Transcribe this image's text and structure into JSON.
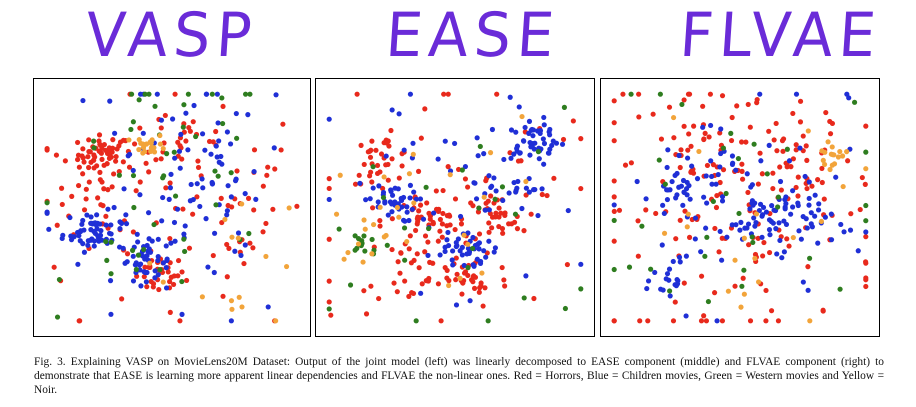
{
  "colors": {
    "title": "#6a2bd8",
    "red": "#e8291c",
    "blue": "#1f2fd6",
    "green": "#2e7d1f",
    "yellow": "#f2a43a"
  },
  "caption": "Fig. 3.  Explaining VASP on MovieLens20M Dataset: Output of the joint model (left) was linearly decomposed to EASE component (middle) and FLVAE component (right) to demonstrate that EASE is learning more apparent linear dependencies and FLVAE the non-linear ones. Red = Horrors, Blue = Children movies, Green = Western movies and Yellow = Noir.",
  "chart_data": [
    {
      "type": "scatter",
      "title": "VASP",
      "xlim": [
        0,
        1
      ],
      "ylim": [
        0,
        1
      ],
      "series": [
        {
          "color": "#e8291c",
          "clusters": [
            [
              0.24,
              0.72,
              0.05,
              0.04,
              55
            ],
            [
              0.45,
              0.22,
              0.05,
              0.04,
              30
            ],
            [
              0.15,
              0.5,
              0.08,
              0.1,
              20
            ],
            [
              0.7,
              0.55,
              0.15,
              0.2,
              40
            ],
            [
              0.55,
              0.8,
              0.1,
              0.08,
              25
            ],
            [
              0.35,
              0.45,
              0.2,
              0.25,
              40
            ]
          ]
        },
        {
          "color": "#1f2fd6",
          "clusters": [
            [
              0.2,
              0.4,
              0.06,
              0.04,
              60
            ],
            [
              0.4,
              0.28,
              0.05,
              0.04,
              35
            ],
            [
              0.6,
              0.6,
              0.12,
              0.2,
              50
            ],
            [
              0.5,
              0.5,
              0.25,
              0.3,
              50
            ]
          ]
        },
        {
          "color": "#2e7d1f",
          "clusters": [
            [
              0.5,
              0.7,
              0.2,
              0.2,
              35
            ],
            [
              0.4,
              0.3,
              0.15,
              0.1,
              15
            ]
          ]
        },
        {
          "color": "#f2a43a",
          "clusters": [
            [
              0.42,
              0.76,
              0.03,
              0.02,
              20
            ],
            [
              0.75,
              0.3,
              0.15,
              0.15,
              15
            ]
          ]
        }
      ]
    },
    {
      "type": "scatter",
      "title": "EASE",
      "xlim": [
        0,
        1
      ],
      "ylim": [
        0,
        1
      ],
      "series": [
        {
          "color": "#e8291c",
          "clusters": [
            [
              0.22,
              0.7,
              0.06,
              0.05,
              35
            ],
            [
              0.4,
              0.45,
              0.06,
              0.04,
              40
            ],
            [
              0.65,
              0.45,
              0.06,
              0.05,
              35
            ],
            [
              0.55,
              0.2,
              0.08,
              0.06,
              30
            ],
            [
              0.35,
              0.25,
              0.1,
              0.08,
              25
            ],
            [
              0.5,
              0.55,
              0.28,
              0.3,
              60
            ]
          ]
        },
        {
          "color": "#1f2fd6",
          "clusters": [
            [
              0.8,
              0.78,
              0.06,
              0.04,
              40
            ],
            [
              0.25,
              0.52,
              0.05,
              0.04,
              35
            ],
            [
              0.54,
              0.32,
              0.04,
              0.04,
              35
            ],
            [
              0.7,
              0.6,
              0.1,
              0.12,
              35
            ],
            [
              0.5,
              0.5,
              0.25,
              0.25,
              40
            ]
          ]
        },
        {
          "color": "#2e7d1f",
          "clusters": [
            [
              0.15,
              0.35,
              0.03,
              0.03,
              15
            ],
            [
              0.5,
              0.4,
              0.25,
              0.25,
              25
            ]
          ]
        },
        {
          "color": "#f2a43a",
          "clusters": [
            [
              0.2,
              0.4,
              0.08,
              0.06,
              15
            ],
            [
              0.45,
              0.55,
              0.2,
              0.2,
              15
            ]
          ]
        }
      ]
    },
    {
      "type": "scatter",
      "title": "FLVAE",
      "xlim": [
        0,
        1
      ],
      "ylim": [
        0,
        1
      ],
      "series": [
        {
          "color": "#e8291c",
          "clusters": [
            [
              0.5,
              0.5,
              0.28,
              0.28,
              140
            ],
            [
              0.75,
              0.7,
              0.08,
              0.1,
              30
            ],
            [
              0.35,
              0.7,
              0.12,
              0.1,
              25
            ]
          ]
        },
        {
          "color": "#1f2fd6",
          "clusters": [
            [
              0.65,
              0.45,
              0.1,
              0.06,
              60
            ],
            [
              0.3,
              0.58,
              0.08,
              0.05,
              35
            ],
            [
              0.25,
              0.2,
              0.04,
              0.06,
              20
            ],
            [
              0.5,
              0.5,
              0.25,
              0.25,
              60
            ]
          ]
        },
        {
          "color": "#2e7d1f",
          "clusters": [
            [
              0.5,
              0.5,
              0.28,
              0.28,
              35
            ]
          ]
        },
        {
          "color": "#f2a43a",
          "clusters": [
            [
              0.85,
              0.72,
              0.03,
              0.02,
              15
            ],
            [
              0.55,
              0.45,
              0.25,
              0.25,
              20
            ]
          ]
        }
      ]
    }
  ]
}
